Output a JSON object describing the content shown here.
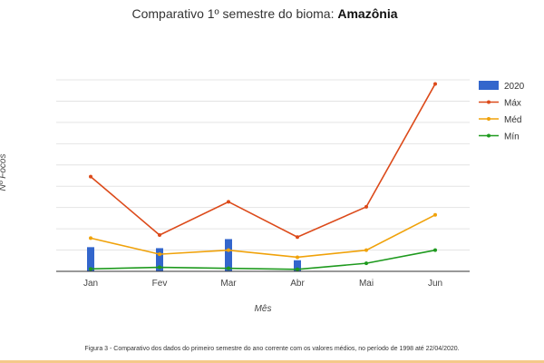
{
  "chart_data": {
    "type": "bar+line",
    "title": "Comparativo 1º semestre do bioma:",
    "title_emphasis": "Amazônia",
    "xlabel": "Mês",
    "ylabel": "Nº Focos",
    "categories": [
      "Jan",
      "Fev",
      "Mar",
      "Abr",
      "Mai",
      "Jun"
    ],
    "ylim": [
      0,
      9.5
    ],
    "gridlines": 9,
    "legend_position": "right",
    "bar_series": {
      "name": "2020",
      "color": "#3366cc",
      "values": [
        1.2,
        1.15,
        1.6,
        0.55,
        0,
        0
      ]
    },
    "series": [
      {
        "name": "Máx",
        "color": "#dc4a1a",
        "values": [
          4.7,
          1.8,
          3.45,
          1.7,
          3.2,
          9.3
        ]
      },
      {
        "name": "Méd",
        "color": "#f0a20a",
        "values": [
          1.65,
          0.85,
          1.05,
          0.7,
          1.05,
          2.8
        ]
      },
      {
        "name": "Mín",
        "color": "#1e9a1e",
        "values": [
          0.12,
          0.2,
          0.15,
          0.1,
          0.4,
          1.05
        ]
      }
    ],
    "caption": "Figura 3 - Comparativo dos dados do primeiro semestre do ano corrente com os valores médios, no período de 1998 até 22/04/2020."
  }
}
